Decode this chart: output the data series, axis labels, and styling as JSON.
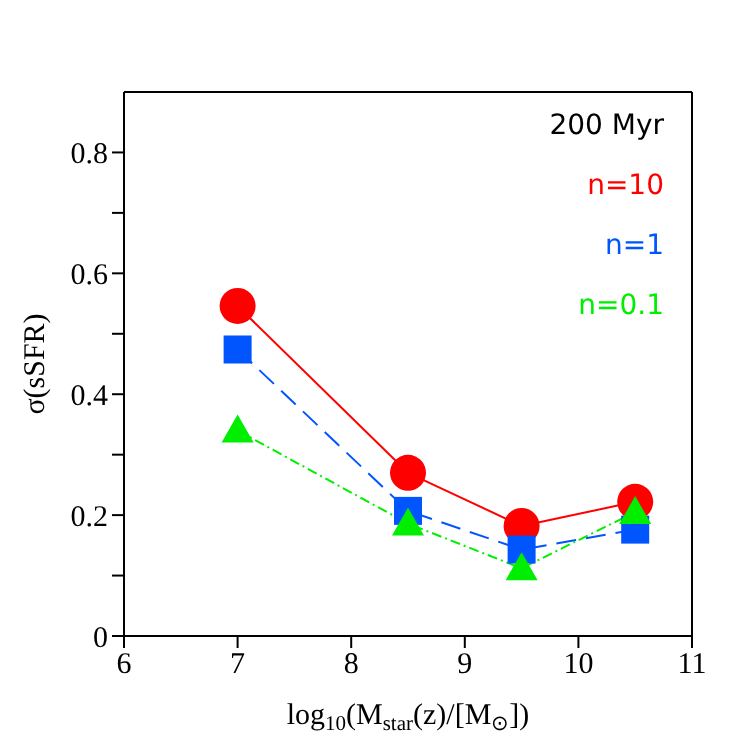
{
  "chart_data": {
    "type": "line",
    "xlabel": "log$_{10}$(M$_{star}$(z)/[M$_{⊙}$])",
    "ylabel": "σ(sSFR)",
    "legend_title": "200 Myr",
    "legend": "top right",
    "grid": false,
    "x": [
      7,
      8.5,
      9.5,
      10.5
    ],
    "series": [
      {
        "name": "n=10",
        "color": "#ff0000",
        "marker": "circle",
        "line_style": "solid",
        "values": [
          0.546,
          0.27,
          0.182,
          0.222
        ]
      },
      {
        "name": "n=1",
        "color": "#0055ff",
        "marker": "square",
        "line_style": "dashed",
        "values": [
          0.474,
          0.207,
          0.143,
          0.176
        ]
      },
      {
        "name": "n=0.1",
        "color": "#00ee00",
        "marker": "triangle",
        "line_style": "dotted",
        "values": [
          0.34,
          0.186,
          0.112,
          0.205
        ]
      }
    ],
    "xlim": [
      6,
      11
    ],
    "xticks": [
      6,
      7,
      8,
      9,
      10,
      11
    ],
    "ylim": [
      0,
      0.9
    ],
    "yticks": [
      0,
      {
        "value": 0.1,
        "label": null
      },
      0.2,
      {
        "value": 0.3,
        "label": null
      },
      0.4,
      {
        "value": 0.5,
        "label": null
      },
      0.6,
      {
        "value": 0.7,
        "label": null
      },
      0.8
    ]
  }
}
